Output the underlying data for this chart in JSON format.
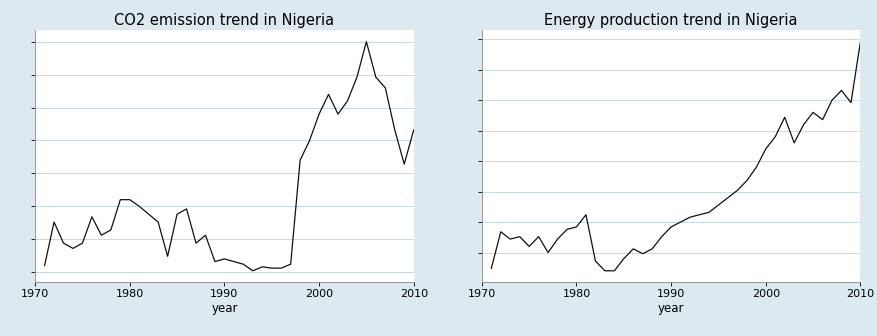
{
  "co2_years": [
    1971,
    1972,
    1973,
    1974,
    1975,
    1976,
    1977,
    1978,
    1979,
    1980,
    1981,
    1982,
    1983,
    1984,
    1985,
    1986,
    1987,
    1988,
    1989,
    1990,
    1991,
    1992,
    1993,
    1994,
    1995,
    1996,
    1997,
    1998,
    1999,
    2000,
    2001,
    2002,
    2003,
    2004,
    2005,
    2006,
    2007,
    2008,
    2009,
    2010
  ],
  "co2_values": [
    5,
    38,
    22,
    18,
    22,
    42,
    28,
    32,
    55,
    55,
    50,
    44,
    38,
    12,
    44,
    48,
    22,
    28,
    8,
    10,
    8,
    6,
    1,
    4,
    3,
    3,
    6,
    85,
    100,
    120,
    135,
    120,
    130,
    148,
    175,
    148,
    140,
    108,
    82,
    108
  ],
  "energy_years": [
    1971,
    1972,
    1973,
    1974,
    1975,
    1976,
    1977,
    1978,
    1979,
    1980,
    1981,
    1982,
    1983,
    1984,
    1985,
    1986,
    1987,
    1988,
    1989,
    1990,
    1991,
    1992,
    1993,
    1994,
    1995,
    1996,
    1997,
    1998,
    1999,
    2000,
    2001,
    2002,
    2003,
    2004,
    2005,
    2006,
    2007,
    2008,
    2009,
    2010
  ],
  "energy_values": [
    12,
    42,
    36,
    38,
    30,
    38,
    25,
    36,
    44,
    46,
    56,
    18,
    10,
    10,
    20,
    28,
    24,
    28,
    38,
    46,
    50,
    54,
    56,
    58,
    64,
    70,
    76,
    84,
    95,
    110,
    120,
    136,
    115,
    130,
    140,
    134,
    150,
    158,
    148,
    198
  ],
  "co2_title": "CO2 emission trend in Nigeria",
  "energy_title": "Energy production trend in Nigeria",
  "xlabel": "year",
  "xlim": [
    1970,
    2010
  ],
  "bg_color": "#dce9f0",
  "plot_bg_color": "#ffffff",
  "line_color": "#111111",
  "grid_color": "#c8d8e0",
  "tick_label_fontsize": 8,
  "title_fontsize": 10.5,
  "xlabel_fontsize": 8.5
}
